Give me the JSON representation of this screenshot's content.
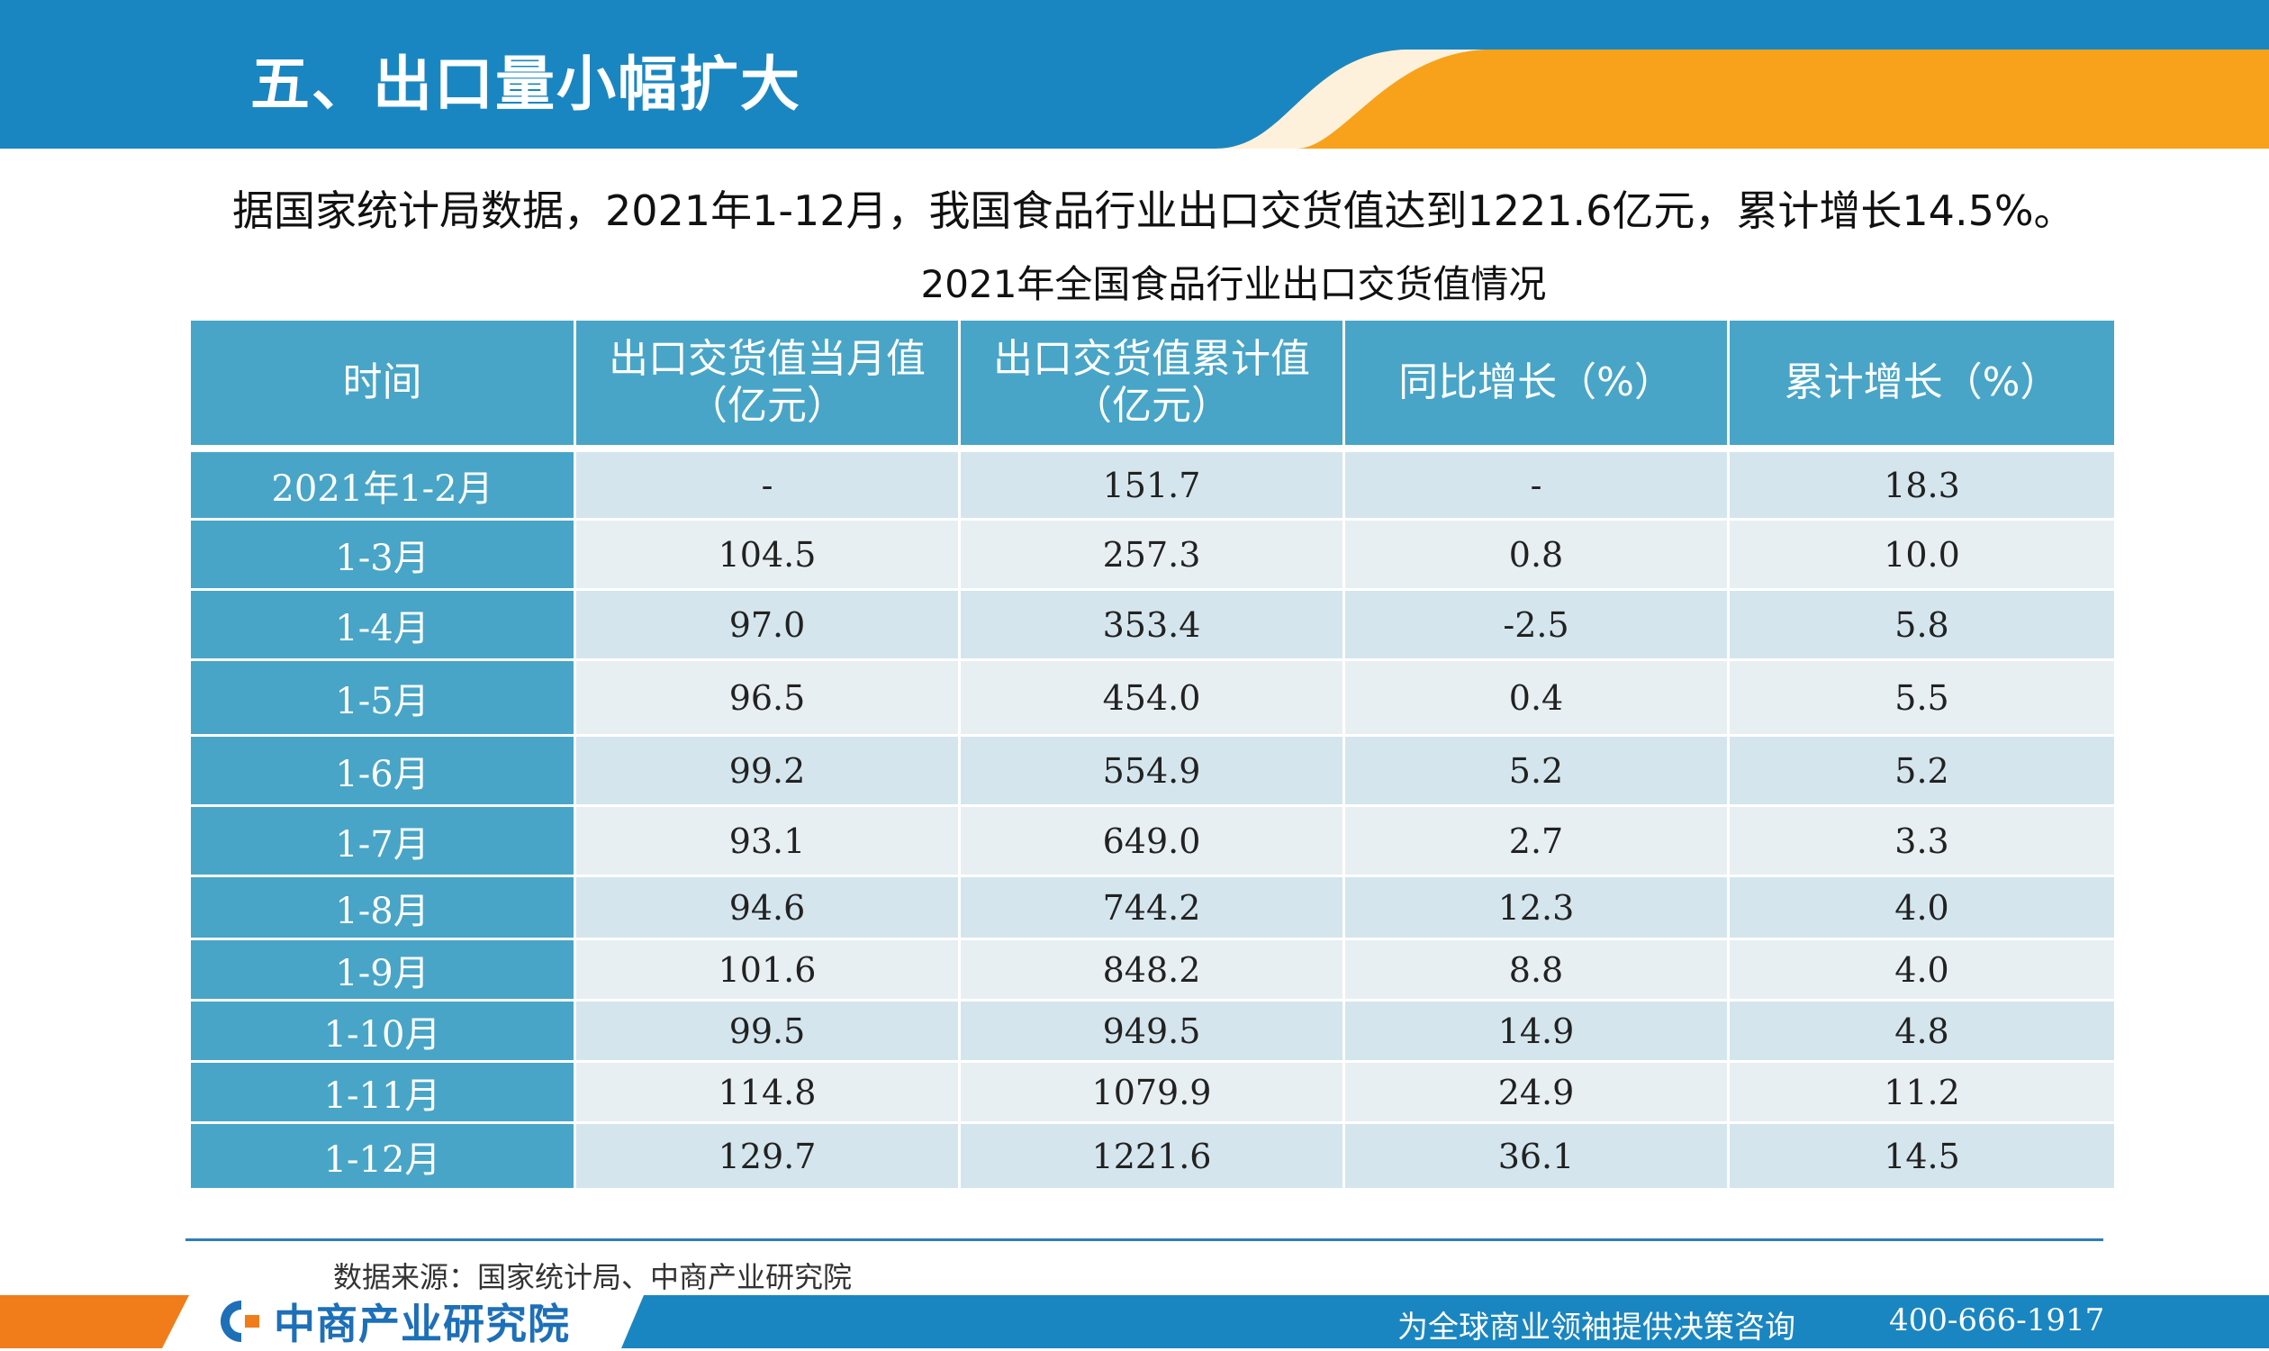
{
  "header": {
    "title": "五、出口量小幅扩大",
    "colors": {
      "blue": "#1a86c1",
      "orange": "#f7a21a"
    }
  },
  "intro": "据国家统计局数据，2021年1-12月，我国食品行业出口交货值达到1221.6亿元，累计增长14.5%。",
  "table": {
    "title": "2021年全国食品行业出口交货值情况",
    "columns": [
      "时间",
      "出口交货值当月值\n（亿元）",
      "出口交货值累计值\n（亿元）",
      "同比增长（%）",
      "累计增长（%）"
    ],
    "rows": [
      {
        "time": "2021年1-2月",
        "monthly": "-",
        "cumulative": "151.7",
        "yoy": "-",
        "cum_growth": "18.3"
      },
      {
        "time": "1-3月",
        "monthly": "104.5",
        "cumulative": "257.3",
        "yoy": "0.8",
        "cum_growth": "10.0"
      },
      {
        "time": "1-4月",
        "monthly": "97.0",
        "cumulative": "353.4",
        "yoy": "-2.5",
        "cum_growth": "5.8"
      },
      {
        "time": "1-5月",
        "monthly": "96.5",
        "cumulative": "454.0",
        "yoy": "0.4",
        "cum_growth": "5.5"
      },
      {
        "time": "1-6月",
        "monthly": "99.2",
        "cumulative": "554.9",
        "yoy": "5.2",
        "cum_growth": "5.2"
      },
      {
        "time": "1-7月",
        "monthly": "93.1",
        "cumulative": "649.0",
        "yoy": "2.7",
        "cum_growth": "3.3"
      },
      {
        "time": "1-8月",
        "monthly": "94.6",
        "cumulative": "744.2",
        "yoy": "12.3",
        "cum_growth": "4.0"
      },
      {
        "time": "1-9月",
        "monthly": "101.6",
        "cumulative": "848.2",
        "yoy": "8.8",
        "cum_growth": "4.0"
      },
      {
        "time": "1-10月",
        "monthly": "99.5",
        "cumulative": "949.5",
        "yoy": "14.9",
        "cum_growth": "4.8"
      },
      {
        "time": "1-11月",
        "monthly": "114.8",
        "cumulative": "1079.9",
        "yoy": "24.9",
        "cum_growth": "11.2"
      },
      {
        "time": "1-12月",
        "monthly": "129.7",
        "cumulative": "1221.6",
        "yoy": "36.1",
        "cum_growth": "14.5"
      }
    ]
  },
  "source": "数据来源：国家统计局、中商产业研究院",
  "footer": {
    "logo_text": "中商产业研究院",
    "logo_icon": "company-logo-icon",
    "slogan": "为全球商业领袖提供决策咨询",
    "phone": "400-666-1917"
  }
}
